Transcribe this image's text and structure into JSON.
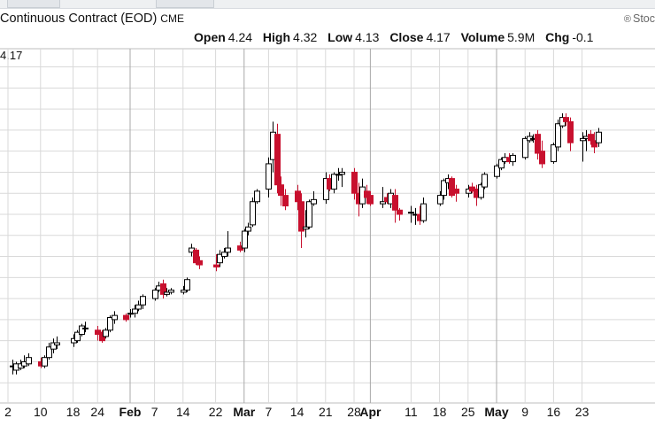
{
  "header": {
    "title": "Continuous Contract (EOD)",
    "exchange": "CME",
    "brand": "Stoc",
    "ohlc": [
      {
        "label": "Open",
        "value": "4.24"
      },
      {
        "label": "High",
        "value": "4.32"
      },
      {
        "label": "Low",
        "value": "4.13"
      },
      {
        "label": "Close",
        "value": "4.17"
      },
      {
        "label": "Volume",
        "value": "5.9M"
      },
      {
        "label": "Chg",
        "value": "-0.1"
      }
    ],
    "last_price": "4.17"
  },
  "colors": {
    "up": "#000000",
    "down": "#c8102e",
    "grid": "#d9d9d9",
    "month_line": "#a9a9a9"
  },
  "chart_data": {
    "type": "candlestick",
    "x_tick_labels": [
      {
        "text": "2",
        "date": "Jan 2",
        "major": false
      },
      {
        "text": "10",
        "date": "Jan 10",
        "major": false
      },
      {
        "text": "18",
        "date": "Jan 18",
        "major": false
      },
      {
        "text": "24",
        "date": "Jan 24",
        "major": false
      },
      {
        "text": "Feb",
        "date": "Feb 1",
        "major": true
      },
      {
        "text": "7",
        "date": "Feb 7",
        "major": false
      },
      {
        "text": "14",
        "date": "Feb 14",
        "major": false
      },
      {
        "text": "22",
        "date": "Feb 22",
        "major": false
      },
      {
        "text": "Mar",
        "date": "Mar 1",
        "major": true
      },
      {
        "text": "7",
        "date": "Mar 7",
        "major": false
      },
      {
        "text": "14",
        "date": "Mar 14",
        "major": false
      },
      {
        "text": "21",
        "date": "Mar 21",
        "major": false
      },
      {
        "text": "28",
        "date": "Mar 28",
        "major": false
      },
      {
        "text": "Apr",
        "date": "Apr 1",
        "major": true
      },
      {
        "text": "11",
        "date": "Apr 11",
        "major": false
      },
      {
        "text": "18",
        "date": "Apr 18",
        "major": false
      },
      {
        "text": "25",
        "date": "Apr 25",
        "major": false
      },
      {
        "text": "May",
        "date": "May 2",
        "major": true
      },
      {
        "text": "9",
        "date": "May 9",
        "major": false
      },
      {
        "text": "16",
        "date": "May 16",
        "major": false
      },
      {
        "text": "23",
        "date": "May 23",
        "major": false
      }
    ],
    "y_range": [
      2.6,
      4.4
    ],
    "grid": true,
    "candles": [
      {
        "d": "Jan 3",
        "o": 2.78,
        "h": 2.81,
        "l": 2.74,
        "c": 2.78
      },
      {
        "d": "Jan 4",
        "o": 2.76,
        "h": 2.8,
        "l": 2.74,
        "c": 2.79
      },
      {
        "d": "Jan 5",
        "o": 2.77,
        "h": 2.81,
        "l": 2.76,
        "c": 2.79
      },
      {
        "d": "Jan 6",
        "o": 2.78,
        "h": 2.83,
        "l": 2.77,
        "c": 2.8
      },
      {
        "d": "Jan 7",
        "o": 2.79,
        "h": 2.84,
        "l": 2.78,
        "c": 2.82
      },
      {
        "d": "Jan 10",
        "o": 2.8,
        "h": 2.82,
        "l": 2.77,
        "c": 2.78
      },
      {
        "d": "Jan 11",
        "o": 2.78,
        "h": 2.83,
        "l": 2.77,
        "c": 2.82
      },
      {
        "d": "Jan 12",
        "o": 2.82,
        "h": 2.89,
        "l": 2.81,
        "c": 2.87
      },
      {
        "d": "Jan 13",
        "o": 2.86,
        "h": 2.91,
        "l": 2.84,
        "c": 2.89
      },
      {
        "d": "Jan 14",
        "o": 2.88,
        "h": 2.92,
        "l": 2.86,
        "c": 2.89
      },
      {
        "d": "Jan 18",
        "o": 2.89,
        "h": 2.93,
        "l": 2.87,
        "c": 2.91
      },
      {
        "d": "Jan 19",
        "o": 2.9,
        "h": 2.95,
        "l": 2.89,
        "c": 2.94
      },
      {
        "d": "Jan 20",
        "o": 2.93,
        "h": 2.98,
        "l": 2.92,
        "c": 2.97
      },
      {
        "d": "Jan 21",
        "o": 2.96,
        "h": 2.99,
        "l": 2.94,
        "c": 2.96
      },
      {
        "d": "Jan 24",
        "o": 2.95,
        "h": 2.97,
        "l": 2.9,
        "c": 2.93
      },
      {
        "d": "Jan 25",
        "o": 2.94,
        "h": 2.95,
        "l": 2.89,
        "c": 2.9
      },
      {
        "d": "Jan 26",
        "o": 2.92,
        "h": 2.96,
        "l": 2.91,
        "c": 2.95
      },
      {
        "d": "Jan 27",
        "o": 2.95,
        "h": 3.02,
        "l": 2.94,
        "c": 3.01
      },
      {
        "d": "Jan 28",
        "o": 3.0,
        "h": 3.04,
        "l": 2.98,
        "c": 3.02
      },
      {
        "d": "Jan 31",
        "o": 3.02,
        "h": 3.03,
        "l": 2.99,
        "c": 3.0
      },
      {
        "d": "Feb 1",
        "o": 3.03,
        "h": 3.05,
        "l": 3.01,
        "c": 3.03
      },
      {
        "d": "Feb 2",
        "o": 3.03,
        "h": 3.07,
        "l": 3.01,
        "c": 3.05
      },
      {
        "d": "Feb 3",
        "o": 3.05,
        "h": 3.09,
        "l": 3.04,
        "c": 3.07
      },
      {
        "d": "Feb 4",
        "o": 3.07,
        "h": 3.12,
        "l": 3.05,
        "c": 3.11
      },
      {
        "d": "Feb 7",
        "o": 3.1,
        "h": 3.15,
        "l": 3.09,
        "c": 3.14
      },
      {
        "d": "Feb 8",
        "o": 3.14,
        "h": 3.18,
        "l": 3.13,
        "c": 3.16
      },
      {
        "d": "Feb 9",
        "o": 3.17,
        "h": 3.19,
        "l": 3.1,
        "c": 3.12
      },
      {
        "d": "Feb 10",
        "o": 3.12,
        "h": 3.15,
        "l": 3.11,
        "c": 3.13
      },
      {
        "d": "Feb 11",
        "o": 3.13,
        "h": 3.15,
        "l": 3.12,
        "c": 3.14
      },
      {
        "d": "Feb 14",
        "o": 3.13,
        "h": 3.16,
        "l": 3.12,
        "c": 3.14
      },
      {
        "d": "Feb 15",
        "o": 3.14,
        "h": 3.2,
        "l": 3.13,
        "c": 3.19
      },
      {
        "d": "Feb 16",
        "o": 3.32,
        "h": 3.36,
        "l": 3.3,
        "c": 3.34
      },
      {
        "d": "Feb 17",
        "o": 3.33,
        "h": 3.34,
        "l": 3.26,
        "c": 3.27
      },
      {
        "d": "Feb 18",
        "o": 3.28,
        "h": 3.3,
        "l": 3.24,
        "c": 3.26
      },
      {
        "d": "Feb 22",
        "o": 3.26,
        "h": 3.31,
        "l": 3.23,
        "c": 3.25
      },
      {
        "d": "Feb 23",
        "o": 3.27,
        "h": 3.33,
        "l": 3.25,
        "c": 3.31
      },
      {
        "d": "Feb 24",
        "o": 3.3,
        "h": 3.34,
        "l": 3.29,
        "c": 3.32
      },
      {
        "d": "Feb 25",
        "o": 3.32,
        "h": 3.42,
        "l": 3.3,
        "c": 3.34
      },
      {
        "d": "Feb 28",
        "o": 3.35,
        "h": 3.37,
        "l": 3.32,
        "c": 3.33
      },
      {
        "d": "Mar 1",
        "o": 3.34,
        "h": 3.43,
        "l": 3.32,
        "c": 3.42
      },
      {
        "d": "Mar 2",
        "o": 3.42,
        "h": 3.46,
        "l": 3.4,
        "c": 3.44
      },
      {
        "d": "Mar 3",
        "o": 3.45,
        "h": 3.58,
        "l": 3.44,
        "c": 3.56
      },
      {
        "d": "Mar 4",
        "o": 3.56,
        "h": 3.62,
        "l": 3.55,
        "c": 3.61
      },
      {
        "d": "Mar 7",
        "o": 3.62,
        "h": 3.77,
        "l": 3.58,
        "c": 3.74
      },
      {
        "d": "Mar 8",
        "o": 3.76,
        "h": 3.94,
        "l": 3.7,
        "c": 3.89
      },
      {
        "d": "Mar 9",
        "o": 3.88,
        "h": 3.93,
        "l": 3.6,
        "c": 3.64
      },
      {
        "d": "Mar 10",
        "o": 3.64,
        "h": 3.68,
        "l": 3.54,
        "c": 3.59
      },
      {
        "d": "Mar 11",
        "o": 3.59,
        "h": 3.62,
        "l": 3.52,
        "c": 3.54
      },
      {
        "d": "Mar 14",
        "o": 3.61,
        "h": 3.64,
        "l": 3.52,
        "c": 3.56
      },
      {
        "d": "Mar 15",
        "o": 3.56,
        "h": 3.6,
        "l": 3.34,
        "c": 3.42
      },
      {
        "d": "Mar 16",
        "o": 3.43,
        "h": 3.52,
        "l": 3.39,
        "c": 3.44
      },
      {
        "d": "Mar 17",
        "o": 3.44,
        "h": 3.57,
        "l": 3.43,
        "c": 3.56
      },
      {
        "d": "Mar 18",
        "o": 3.55,
        "h": 3.61,
        "l": 3.54,
        "c": 3.57
      },
      {
        "d": "Mar 21",
        "o": 3.57,
        "h": 3.7,
        "l": 3.55,
        "c": 3.67
      },
      {
        "d": "Mar 22",
        "o": 3.67,
        "h": 3.69,
        "l": 3.61,
        "c": 3.62
      },
      {
        "d": "Mar 23",
        "o": 3.62,
        "h": 3.7,
        "l": 3.6,
        "c": 3.69
      },
      {
        "d": "Mar 24",
        "o": 3.69,
        "h": 3.72,
        "l": 3.66,
        "c": 3.69
      },
      {
        "d": "Mar 25",
        "o": 3.69,
        "h": 3.72,
        "l": 3.63,
        "c": 3.7
      },
      {
        "d": "Mar 28",
        "o": 3.7,
        "h": 3.72,
        "l": 3.57,
        "c": 3.6
      },
      {
        "d": "Mar 29",
        "o": 3.6,
        "h": 3.65,
        "l": 3.49,
        "c": 3.55
      },
      {
        "d": "Mar 30",
        "o": 3.55,
        "h": 3.67,
        "l": 3.53,
        "c": 3.63
      },
      {
        "d": "Mar 31",
        "o": 3.61,
        "h": 3.64,
        "l": 3.55,
        "c": 3.58
      },
      {
        "d": "Apr 1",
        "o": 3.59,
        "h": 3.61,
        "l": 3.54,
        "c": 3.55
      },
      {
        "d": "Apr 4",
        "o": 3.55,
        "h": 3.63,
        "l": 3.53,
        "c": 3.56
      },
      {
        "d": "Apr 5",
        "o": 3.58,
        "h": 3.6,
        "l": 3.55,
        "c": 3.56
      },
      {
        "d": "Apr 6",
        "o": 3.55,
        "h": 3.62,
        "l": 3.53,
        "c": 3.6
      },
      {
        "d": "Apr 7",
        "o": 3.59,
        "h": 3.62,
        "l": 3.46,
        "c": 3.52
      },
      {
        "d": "Apr 8",
        "o": 3.52,
        "h": 3.53,
        "l": 3.47,
        "c": 3.5
      },
      {
        "d": "Apr 11",
        "o": 3.51,
        "h": 3.54,
        "l": 3.46,
        "c": 3.51
      },
      {
        "d": "Apr 12",
        "o": 3.5,
        "h": 3.53,
        "l": 3.45,
        "c": 3.5
      },
      {
        "d": "Apr 13",
        "o": 3.5,
        "h": 3.54,
        "l": 3.45,
        "c": 3.47
      },
      {
        "d": "Apr 14",
        "o": 3.47,
        "h": 3.58,
        "l": 3.46,
        "c": 3.55
      },
      {
        "d": "Apr 18",
        "o": 3.55,
        "h": 3.61,
        "l": 3.54,
        "c": 3.59
      },
      {
        "d": "Apr 19",
        "o": 3.59,
        "h": 3.67,
        "l": 3.57,
        "c": 3.66
      },
      {
        "d": "Apr 20",
        "o": 3.65,
        "h": 3.69,
        "l": 3.62,
        "c": 3.67
      },
      {
        "d": "Apr 21",
        "o": 3.67,
        "h": 3.68,
        "l": 3.58,
        "c": 3.59
      },
      {
        "d": "Apr 22",
        "o": 3.62,
        "h": 3.64,
        "l": 3.56,
        "c": 3.6
      },
      {
        "d": "Apr 25",
        "o": 3.6,
        "h": 3.64,
        "l": 3.58,
        "c": 3.62
      },
      {
        "d": "Apr 26",
        "o": 3.63,
        "h": 3.65,
        "l": 3.6,
        "c": 3.61
      },
      {
        "d": "Apr 27",
        "o": 3.62,
        "h": 3.64,
        "l": 3.54,
        "c": 3.58
      },
      {
        "d": "Apr 28",
        "o": 3.58,
        "h": 3.65,
        "l": 3.57,
        "c": 3.64
      },
      {
        "d": "Apr 29",
        "o": 3.63,
        "h": 3.7,
        "l": 3.62,
        "c": 3.69
      },
      {
        "d": "May 2",
        "o": 3.68,
        "h": 3.74,
        "l": 3.67,
        "c": 3.73
      },
      {
        "d": "May 3",
        "o": 3.72,
        "h": 3.77,
        "l": 3.71,
        "c": 3.76
      },
      {
        "d": "May 4",
        "o": 3.75,
        "h": 3.79,
        "l": 3.74,
        "c": 3.77
      },
      {
        "d": "May 5",
        "o": 3.77,
        "h": 3.79,
        "l": 3.74,
        "c": 3.75
      },
      {
        "d": "May 6",
        "o": 3.75,
        "h": 3.79,
        "l": 3.73,
        "c": 3.78
      },
      {
        "d": "May 9",
        "o": 3.77,
        "h": 3.87,
        "l": 3.76,
        "c": 3.86
      },
      {
        "d": "May 10",
        "o": 3.85,
        "h": 3.89,
        "l": 3.84,
        "c": 3.87
      },
      {
        "d": "May 11",
        "o": 3.86,
        "h": 3.88,
        "l": 3.84,
        "c": 3.86
      },
      {
        "d": "May 12",
        "o": 3.88,
        "h": 3.9,
        "l": 3.76,
        "c": 3.79
      },
      {
        "d": "May 13",
        "o": 3.8,
        "h": 3.85,
        "l": 3.72,
        "c": 3.74
      },
      {
        "d": "May 16",
        "o": 3.75,
        "h": 3.84,
        "l": 3.74,
        "c": 3.83
      },
      {
        "d": "May 17",
        "o": 3.82,
        "h": 3.95,
        "l": 3.8,
        "c": 3.93
      },
      {
        "d": "May 18",
        "o": 3.92,
        "h": 3.98,
        "l": 3.91,
        "c": 3.96
      },
      {
        "d": "May 19",
        "o": 3.96,
        "h": 3.98,
        "l": 3.92,
        "c": 3.94
      },
      {
        "d": "May 20",
        "o": 3.94,
        "h": 3.96,
        "l": 3.8,
        "c": 3.84
      },
      {
        "d": "May 23",
        "o": 3.85,
        "h": 3.89,
        "l": 3.75,
        "c": 3.86
      },
      {
        "d": "May 24",
        "o": 3.86,
        "h": 3.9,
        "l": 3.8,
        "c": 3.87
      },
      {
        "d": "May 25",
        "o": 3.88,
        "h": 3.9,
        "l": 3.83,
        "c": 3.85
      },
      {
        "d": "May 26",
        "o": 3.85,
        "h": 3.89,
        "l": 3.79,
        "c": 3.82
      },
      {
        "d": "May 27",
        "o": 3.84,
        "h": 3.91,
        "l": 3.82,
        "c": 3.89
      }
    ]
  }
}
